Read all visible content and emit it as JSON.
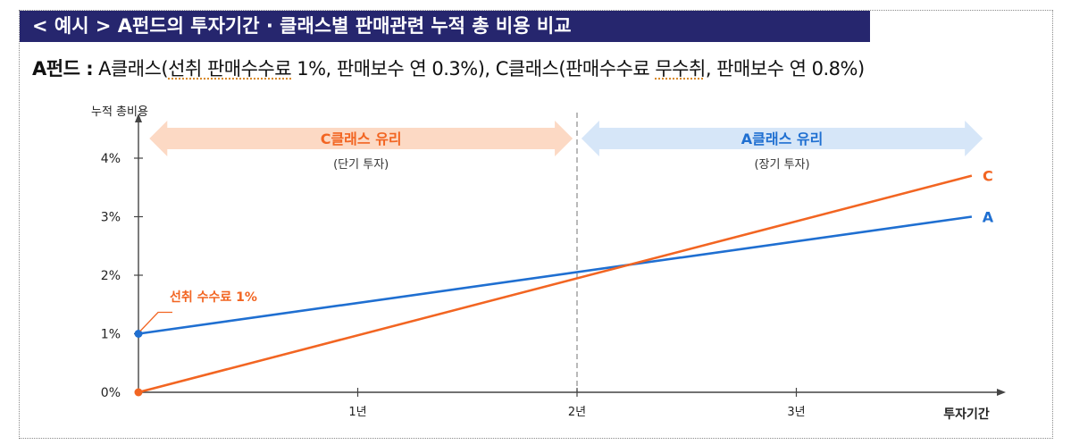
{
  "header": {
    "title": "< 예시 >  A펀드의 투자기간 · 클래스별 판매관련 누적 총 비용 비교"
  },
  "subtitle": {
    "lead": "A펀드 :",
    "part1": "A클래스(",
    "part2": "선취 판매수수료",
    "part3": " 1%, 판매보수 연 0.3%),  C클래스(판매수수료 ",
    "part4": "무수취",
    "part5": ", 판매보수 연 0.8%)"
  },
  "chart_data": {
    "type": "line",
    "ylabel": "누적 총비용",
    "xlabel": "투자기간",
    "x_ticks": [
      {
        "value": 0,
        "label": ""
      },
      {
        "value": 1,
        "label": "1년"
      },
      {
        "value": 2,
        "label": "2년"
      },
      {
        "value": 3,
        "label": "3년"
      }
    ],
    "y_ticks": [
      {
        "value": 0,
        "label": "0%"
      },
      {
        "value": 1,
        "label": "1%"
      },
      {
        "value": 2,
        "label": "2%"
      },
      {
        "value": 3,
        "label": "3%"
      },
      {
        "value": 4,
        "label": "4%"
      }
    ],
    "xlim": [
      0,
      3.9
    ],
    "ylim": [
      0,
      4.5
    ],
    "series": [
      {
        "name": "A",
        "color": "#1f6fd1",
        "points": [
          [
            0,
            1.0
          ],
          [
            3.8,
            3.0
          ]
        ],
        "marker_at_start": true
      },
      {
        "name": "C",
        "color": "#f26522",
        "points": [
          [
            0,
            0.0
          ],
          [
            3.8,
            3.7
          ]
        ],
        "marker_at_start": true
      }
    ],
    "divider_x": 2,
    "regions": [
      {
        "label": "C클래스 유리",
        "sublabel": "(단기 투자)",
        "x_from": 0.05,
        "x_to": 1.98,
        "y": 4.4,
        "fill": "#fcd9c4",
        "text_color": "#f26522"
      },
      {
        "label": "A클래스 유리",
        "sublabel": "(장기 투자)",
        "x_from": 2.02,
        "x_to": 3.85,
        "y": 4.4,
        "fill": "#d6e6f8",
        "text_color": "#1f6fd1"
      }
    ],
    "annotation": {
      "text": "선취 수수료 1%",
      "x": 0,
      "y": 1.0,
      "color": "#f26522"
    },
    "grid": false
  }
}
